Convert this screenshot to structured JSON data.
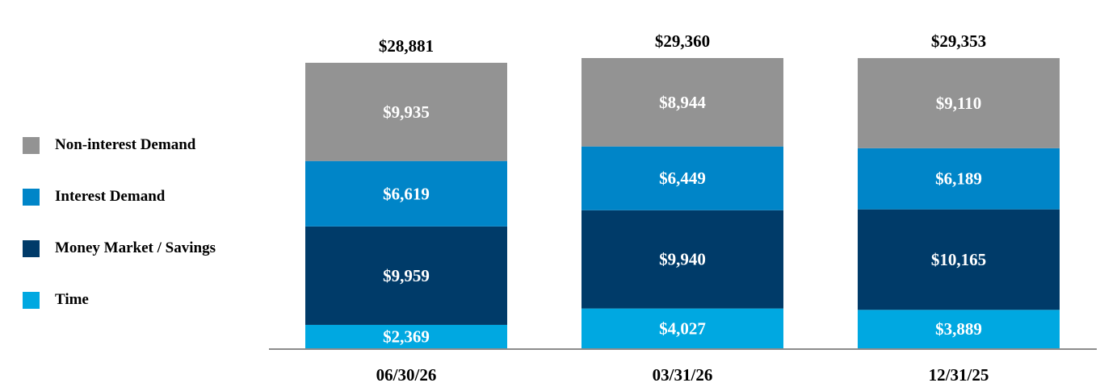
{
  "chart_data": {
    "type": "bar",
    "stacked": true,
    "categories": [
      "06/30/26",
      "03/31/26",
      "12/31/25"
    ],
    "totals_labels": [
      "$28,881",
      "$29,360",
      "$29,353"
    ],
    "totals": [
      28881,
      29360,
      29353
    ],
    "legend_position": "left",
    "grid": false,
    "series": [
      {
        "name": "Time",
        "color": "#00A8E1",
        "values": [
          2369,
          4027,
          3889
        ],
        "labels": [
          "$2,369",
          "$4,027",
          "$3,889"
        ]
      },
      {
        "name": "Money Market / Savings",
        "color": "#003B69",
        "values": [
          9959,
          9940,
          10165
        ],
        "labels": [
          "$9,959",
          "$9,940",
          "$10,165"
        ]
      },
      {
        "name": "Interest Demand",
        "color": "#0085C8",
        "values": [
          6619,
          6449,
          6189
        ],
        "labels": [
          "$6,619",
          "$6,449",
          "$6,189"
        ]
      },
      {
        "name": "Non-interest Demand",
        "color": "#939393",
        "values": [
          9935,
          8944,
          9110
        ],
        "labels": [
          "$9,935",
          "$8,944",
          "$9,110"
        ]
      }
    ],
    "legend_order": [
      "Non-interest Demand",
      "Interest Demand",
      "Money Market / Savings",
      "Time"
    ]
  }
}
